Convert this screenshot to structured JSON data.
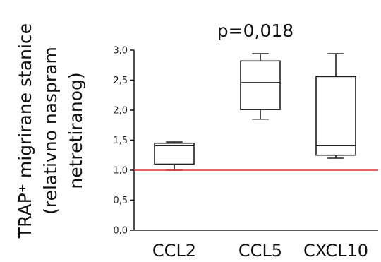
{
  "chart_data": {
    "type": "box",
    "ylabel_lines": [
      "TRAP⁺ migrirane stanice",
      "(relativno naspram",
      "netretiranog)"
    ],
    "annotation": "p=0,018",
    "ylim": [
      0,
      3.0
    ],
    "yticks": [
      0.0,
      0.5,
      1.0,
      1.5,
      2.0,
      2.5,
      3.0
    ],
    "ytick_labels": [
      "0,0",
      "0,5",
      "1,0",
      "1,5",
      "2,0",
      "2,5",
      "3,0"
    ],
    "reference_line": {
      "value": 1.0,
      "color": "#e03030"
    },
    "categories": [
      "CCL2",
      "CCL5",
      "CXCL10"
    ],
    "boxes": [
      {
        "name": "CCL2",
        "min": 1.0,
        "q1": 1.1,
        "median": 1.41,
        "q3": 1.45,
        "max": 1.47
      },
      {
        "name": "CCL5",
        "min": 1.85,
        "q1": 2.01,
        "median": 2.46,
        "q3": 2.82,
        "max": 2.94
      },
      {
        "name": "CXCL10",
        "min": 1.2,
        "q1": 1.25,
        "median": 1.41,
        "q3": 2.56,
        "max": 2.94
      }
    ]
  }
}
